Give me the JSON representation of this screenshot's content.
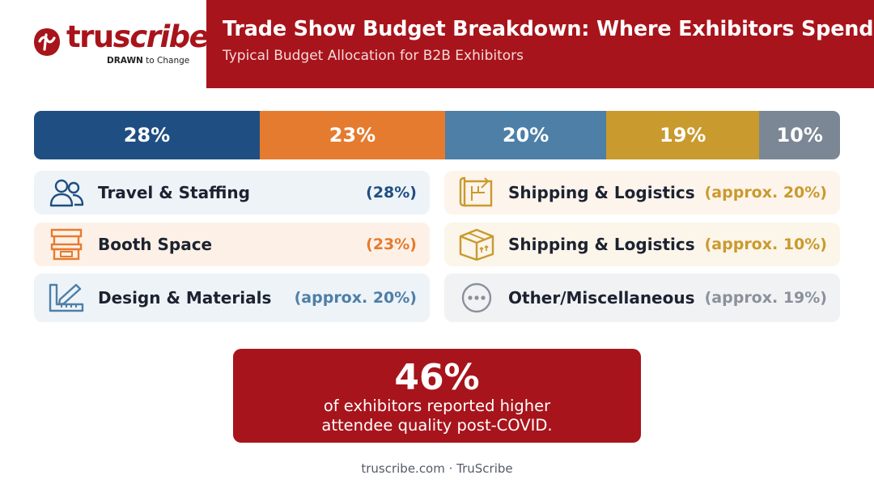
{
  "logo": {
    "word_tru": "tru",
    "word_scribe": "scribe",
    "reg": "®",
    "tag_bold": "DRAWN",
    "tag_rest": " to Change"
  },
  "header": {
    "title": "Trade Show Budget Breakdown: Where Exhibitors Spend",
    "subtitle": "Typical Budget Allocation for B2B Exhibitors"
  },
  "chart_data": {
    "type": "bar",
    "orientation": "stacked-horizontal",
    "title": "Trade Show Budget Breakdown: Where Exhibitors Spend",
    "subtitle": "Typical Budget Allocation for B2B Exhibitors",
    "values": [
      28,
      23,
      20,
      19,
      10
    ],
    "labels": [
      "28%",
      "23%",
      "20%",
      "19%",
      "10%"
    ],
    "colors": [
      "#1f4e82",
      "#e57b2f",
      "#4d7fa7",
      "#c99a2d",
      "#7b8794"
    ],
    "unit": "%"
  },
  "legend": {
    "left": [
      {
        "label": "Travel & Staffing",
        "pct": "(28%)",
        "icon": "people-icon",
        "bg": "#eef3f8",
        "color": "#1f4e82"
      },
      {
        "label": "Booth Space",
        "pct": "(23%)",
        "icon": "booth-icon",
        "bg": "#fdf1e7",
        "color": "#e57b2f"
      },
      {
        "label": "Design & Materials",
        "pct": "(approx. 20%)",
        "icon": "ruler-pencil-icon",
        "bg": "#eef3f8",
        "color": "#4d7fa7"
      }
    ],
    "right": [
      {
        "label": "Shipping & Logistics",
        "pct": "(approx. 20%)",
        "icon": "blueprint-icon",
        "bg": "#fdf4ec",
        "color": "#c99a2d"
      },
      {
        "label": "Shipping & Logistics",
        "pct": "(approx. 10%)",
        "icon": "package-icon",
        "bg": "#fbf5ea",
        "color": "#c99a2d"
      },
      {
        "label": "Other/Miscellaneous",
        "pct": "(approx. 19%)",
        "icon": "more-dots-icon",
        "bg": "#f1f2f4",
        "color": "#8a919b"
      }
    ]
  },
  "stat": {
    "value": "46%",
    "line1": "of exhibitors reported higher",
    "line2": "attendee quality post-COVID."
  },
  "footer": "truscribe.com · TruScribe"
}
